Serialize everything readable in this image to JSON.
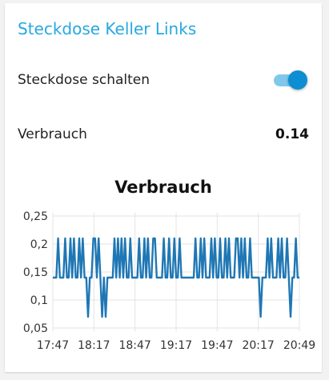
{
  "card": {
    "title": "Steckdose Keller Links"
  },
  "switch_row": {
    "label": "Steckdose schalten",
    "state": "on",
    "accent": "#0d8ed3"
  },
  "usage_row": {
    "label": "Verbrauch",
    "value": "0.14"
  },
  "chart_data": {
    "type": "line",
    "title": "Verbrauch",
    "xlabel": "",
    "ylabel": "",
    "x_ticks": [
      "17:47",
      "18:17",
      "18:47",
      "19:17",
      "19:47",
      "20:17",
      "20:49"
    ],
    "y_ticks": [
      "0,25",
      "0,2",
      "0,15",
      "0,1",
      "0,05"
    ],
    "ylim": [
      0.05,
      0.25
    ],
    "grid": true,
    "series": [
      {
        "color": "#1f77b4",
        "values": [
          0.14,
          0.14,
          0.14,
          0.21,
          0.14,
          0.14,
          0.14,
          0.21,
          0.14,
          0.14,
          0.21,
          0.14,
          0.21,
          0.14,
          0.14,
          0.21,
          0.14,
          0.21,
          0.14,
          0.14,
          0.07,
          0.14,
          0.14,
          0.21,
          0.21,
          0.14,
          0.21,
          0.14,
          0.07,
          0.14,
          0.07,
          0.14,
          0.14,
          0.14,
          0.14,
          0.21,
          0.14,
          0.21,
          0.14,
          0.21,
          0.14,
          0.21,
          0.14,
          0.14,
          0.21,
          0.14,
          0.14,
          0.14,
          0.14,
          0.21,
          0.14,
          0.14,
          0.21,
          0.14,
          0.21,
          0.14,
          0.14,
          0.21,
          0.21,
          0.14,
          0.14,
          0.14,
          0.14,
          0.21,
          0.14,
          0.14,
          0.21,
          0.14,
          0.14,
          0.21,
          0.14,
          0.14,
          0.21,
          0.14,
          0.14,
          0.14,
          0.14,
          0.14,
          0.14,
          0.14,
          0.14,
          0.21,
          0.14,
          0.14,
          0.21,
          0.14,
          0.21,
          0.14,
          0.14,
          0.14,
          0.21,
          0.14,
          0.21,
          0.14,
          0.14,
          0.21,
          0.14,
          0.14,
          0.21,
          0.14,
          0.21,
          0.14,
          0.14,
          0.14,
          0.21,
          0.21,
          0.14,
          0.21,
          0.14,
          0.21,
          0.14,
          0.14,
          0.21,
          0.14,
          0.14,
          0.14,
          0.14,
          0.14,
          0.07,
          0.14,
          0.14,
          0.14,
          0.21,
          0.14,
          0.21,
          0.14,
          0.14,
          0.14,
          0.21,
          0.14,
          0.21,
          0.14,
          0.14,
          0.21,
          0.14,
          0.07,
          0.14,
          0.14,
          0.21,
          0.14,
          0.14
        ]
      }
    ]
  }
}
